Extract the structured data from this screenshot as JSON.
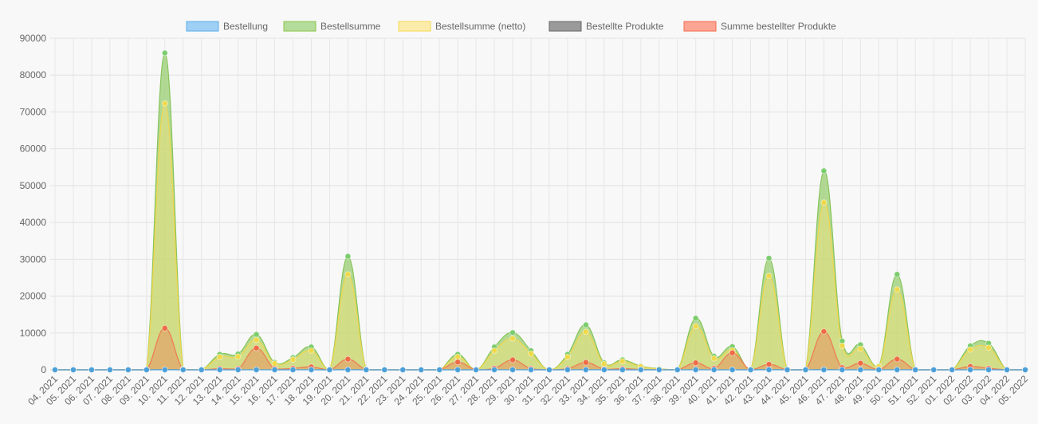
{
  "chart_data": {
    "type": "area",
    "x": [
      "04. 2021",
      "05. 2021",
      "06. 2021",
      "07. 2021",
      "08. 2021",
      "09. 2021",
      "10. 2021",
      "11. 2021",
      "12. 2021",
      "13. 2021",
      "14. 2021",
      "15. 2021",
      "16. 2021",
      "17. 2021",
      "18. 2021",
      "19. 2021",
      "20. 2021",
      "21. 2021",
      "22. 2021",
      "23. 2021",
      "24. 2021",
      "25. 2021",
      "26. 2021",
      "27. 2021",
      "28. 2021",
      "29. 2021",
      "30. 2021",
      "31. 2021",
      "32. 2021",
      "33. 2021",
      "34. 2021",
      "35. 2021",
      "36. 2021",
      "37. 2021",
      "38. 2021",
      "39. 2021",
      "40. 2021",
      "41. 2021",
      "42. 2021",
      "43. 2021",
      "44. 2021",
      "45. 2021",
      "46. 2021",
      "47. 2021",
      "48. 2021",
      "49. 2021",
      "50. 2021",
      "51. 2021",
      "52. 2021",
      "01. 2022",
      "02. 2022",
      "03. 2022",
      "04. 2022",
      "05. 2022"
    ],
    "ylim": [
      0,
      90000
    ],
    "yticks": [
      0,
      10000,
      20000,
      30000,
      40000,
      50000,
      60000,
      70000,
      80000,
      90000
    ],
    "grid": true,
    "legend_position": "top",
    "series": [
      {
        "name": "Bestellsumme",
        "color": "#8bc34a",
        "values": [
          0,
          0,
          0,
          0,
          0,
          0,
          86000,
          200,
          0,
          4200,
          4300,
          9600,
          2000,
          3300,
          6200,
          0,
          30800,
          0,
          0,
          0,
          0,
          0,
          4200,
          0,
          6200,
          10100,
          5200,
          0,
          4200,
          12200,
          1900,
          2700,
          1000,
          300,
          0,
          14000,
          3700,
          6300,
          0,
          30300,
          0,
          0,
          54000,
          7800,
          6800,
          1000,
          25900,
          0,
          0,
          0,
          6500,
          7200,
          0,
          0
        ]
      },
      {
        "name": "Bestellsumme (netto)",
        "color": "#ffeb80",
        "values": [
          0,
          0,
          0,
          0,
          0,
          0,
          72300,
          150,
          0,
          3500,
          3600,
          8100,
          1700,
          2800,
          5200,
          0,
          25900,
          0,
          0,
          0,
          0,
          0,
          3500,
          0,
          5200,
          8500,
          4400,
          0,
          3500,
          10300,
          1600,
          2300,
          850,
          250,
          0,
          11800,
          3100,
          5300,
          0,
          25500,
          0,
          0,
          45400,
          6500,
          5700,
          850,
          21800,
          0,
          0,
          0,
          5500,
          6000,
          0,
          0
        ]
      },
      {
        "name": "Summe bestellter Produkte",
        "color": "#ff7043",
        "values": [
          0,
          0,
          0,
          0,
          0,
          0,
          11300,
          0,
          0,
          300,
          300,
          5900,
          300,
          400,
          800,
          0,
          2900,
          0,
          0,
          0,
          0,
          0,
          2100,
          0,
          400,
          2700,
          300,
          0,
          300,
          2000,
          200,
          300,
          100,
          0,
          0,
          1900,
          400,
          4600,
          0,
          1500,
          0,
          0,
          10400,
          600,
          1800,
          100,
          2900,
          0,
          0,
          0,
          900,
          400,
          0,
          0
        ]
      },
      {
        "name": "Bestellte Produkte",
        "color": "#555555",
        "values": [
          0,
          0,
          0,
          0,
          0,
          0,
          50,
          2,
          0,
          5,
          5,
          20,
          4,
          6,
          10,
          0,
          40,
          0,
          0,
          0,
          0,
          0,
          8,
          0,
          10,
          15,
          8,
          0,
          5,
          20,
          3,
          5,
          2,
          1,
          0,
          20,
          5,
          10,
          0,
          40,
          0,
          0,
          60,
          10,
          10,
          2,
          30,
          0,
          0,
          0,
          10,
          10,
          0,
          0
        ]
      },
      {
        "name": "Bestellung",
        "color": "#4aa3df",
        "values": [
          0,
          0,
          0,
          0,
          0,
          0,
          5,
          1,
          0,
          2,
          2,
          3,
          2,
          2,
          3,
          0,
          4,
          0,
          0,
          0,
          0,
          0,
          2,
          0,
          2,
          3,
          2,
          0,
          2,
          3,
          1,
          2,
          1,
          1,
          0,
          3,
          2,
          2,
          0,
          4,
          0,
          0,
          6,
          3,
          3,
          1,
          4,
          0,
          0,
          0,
          3,
          3,
          0,
          0
        ]
      }
    ],
    "legend": [
      {
        "label": "Bestellung",
        "fill": "#9ecff5",
        "stroke": "#5aaee8"
      },
      {
        "label": "Bestellsumme",
        "fill": "#b4dc9a",
        "stroke": "#8bc34a"
      },
      {
        "label": "Bestellsumme (netto)",
        "fill": "#fcecab",
        "stroke": "#f5d94f"
      },
      {
        "label": "Bestellte Produkte",
        "fill": "#9a9a9a",
        "stroke": "#666666"
      },
      {
        "label": "Summe bestellter Produkte",
        "fill": "#fda593",
        "stroke": "#f46a4e"
      }
    ]
  }
}
